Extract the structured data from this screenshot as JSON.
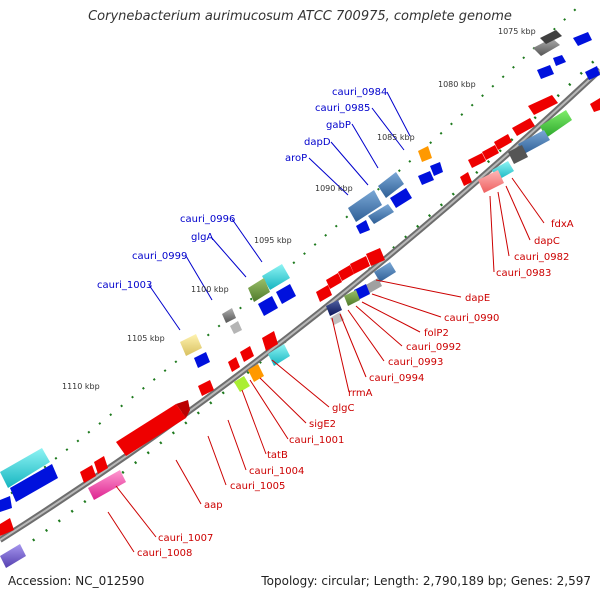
{
  "title": "Corynebacterium aurimucosum ATCC 700975, complete genome",
  "footer": {
    "accession": "Accession: NC_012590",
    "topology": "Topology: circular; Length: 2,790,189 bp; Genes: 2,597"
  },
  "map": {
    "colors": {
      "backbone": "#8c8c8c",
      "forward_label": "#0000cc",
      "reverse_label": "#cc0000",
      "dots": "#1e7a1e",
      "red_cds": "#ee0000",
      "blue_cds": "#0011dd"
    },
    "scale_ticks": [
      "1075 kbp",
      "1080 kbp",
      "1085 kbp",
      "1090 kbp",
      "1095 kbp",
      "1100 kbp",
      "1105 kbp",
      "1110 kbp"
    ],
    "forward_labels": [
      "cauri_0984",
      "cauri_0985",
      "gabP",
      "dapD",
      "aroP",
      "cauri_0996",
      "glgA",
      "cauri_0999",
      "cauri_1003"
    ],
    "reverse_labels": [
      "fdxA",
      "dapC",
      "cauri_0982",
      "cauri_0983",
      "dapE",
      "cauri_0990",
      "folP2",
      "cauri_0992",
      "cauri_0993",
      "cauri_0994",
      "rrmA",
      "glgC",
      "sigE2",
      "cauri_1001",
      "tatB",
      "cauri_1004",
      "cauri_1005",
      "aap",
      "cauri_1007",
      "cauri_1008"
    ]
  }
}
